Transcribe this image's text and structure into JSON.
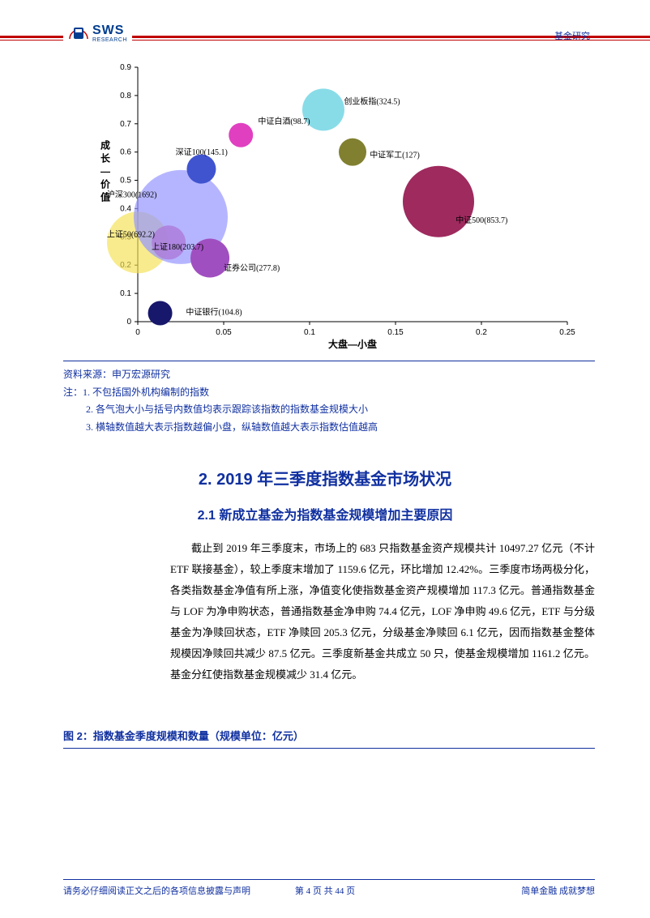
{
  "header": {
    "logo_main": "SWS",
    "logo_sub": "RESEARCH",
    "right_text": "基金研究"
  },
  "chart": {
    "type": "bubble",
    "xlabel": "大盘—小盘",
    "ylabel_top": "成",
    "ylabel_mid1": "长",
    "ylabel_mid2": "—",
    "ylabel_mid3": "价",
    "ylabel_bot": "值",
    "xlim": [
      0,
      0.25
    ],
    "ylim": [
      0,
      0.9
    ],
    "xticks": [
      0,
      0.05,
      0.1,
      0.15,
      0.2,
      0.25
    ],
    "yticks": [
      0,
      0.1,
      0.2,
      0.3,
      0.4,
      0.5,
      0.6,
      0.7,
      0.8,
      0.9
    ],
    "background": "#ffffff",
    "axis_color": "#000000",
    "bubbles": [
      {
        "label": "中证银行(104.8)",
        "x": 0.013,
        "y": 0.03,
        "r": 15,
        "color": "#17176b",
        "lx": 0.028,
        "ly": 0.025
      },
      {
        "label": "上证50(692.2)",
        "x": 0.0,
        "y": 0.28,
        "r": 38,
        "color": "#f5e050",
        "opacity": 0.65,
        "lx": -0.018,
        "ly": 0.3
      },
      {
        "label": "上证180(203.7)",
        "x": 0.018,
        "y": 0.28,
        "r": 21,
        "color": "#e03c80",
        "opacity": 0.8,
        "lx": 0.008,
        "ly": 0.255
      },
      {
        "label": "沪深300(1692)",
        "x": 0.025,
        "y": 0.37,
        "r": 58,
        "color": "#9696ff",
        "opacity": 0.7,
        "lx": -0.018,
        "ly": 0.44
      },
      {
        "label": "证券公司(277.8)",
        "x": 0.042,
        "y": 0.225,
        "r": 24,
        "color": "#a04fc0",
        "lx": 0.05,
        "ly": 0.18
      },
      {
        "label": "深证100(145.1)",
        "x": 0.037,
        "y": 0.54,
        "r": 18,
        "color": "#4054d0",
        "lx": 0.022,
        "ly": 0.59
      },
      {
        "label": "中证白酒(98.7)",
        "x": 0.06,
        "y": 0.66,
        "r": 15,
        "color": "#e040c0",
        "lx": 0.07,
        "ly": 0.7
      },
      {
        "label": "创业板指(324.5)",
        "x": 0.108,
        "y": 0.75,
        "r": 26,
        "color": "#60d0e0",
        "opacity": 0.75,
        "lx": 0.12,
        "ly": 0.77
      },
      {
        "label": "中证军工(127)",
        "x": 0.125,
        "y": 0.6,
        "r": 17,
        "color": "#808030",
        "lx": 0.135,
        "ly": 0.58
      },
      {
        "label": "中证500(853.7)",
        "x": 0.175,
        "y": 0.425,
        "r": 44,
        "color": "#9e2a5e",
        "lx": 0.185,
        "ly": 0.35
      }
    ]
  },
  "source": {
    "line0": "资料来源：申万宏源研究",
    "note_prefix": "注：",
    "note1": "1. 不包括国外机构编制的指数",
    "note2": "2. 各气泡大小与括号内数值均表示跟踪该指数的指数基金规模大小",
    "note3": "3. 横轴数值越大表示指数越偏小盘，纵轴数值越大表示指数估值越高"
  },
  "section": {
    "heading": "2. 2019 年三季度指数基金市场状况",
    "subheading": "2.1 新成立基金为指数基金规模增加主要原因"
  },
  "body": {
    "paragraph": "截止到 2019 年三季度末，市场上的 683 只指数基金资产规模共计 10497.27 亿元（不计 ETF 联接基金），较上季度末增加了 1159.6 亿元，环比增加 12.42%。三季度市场两极分化，各类指数基金净值有所上涨，净值变化使指数基金资产规模增加 117.3 亿元。普通指数基金与 LOF 为净申购状态，普通指数基金净申购 74.4 亿元，LOF 净申购 49.6 亿元，ETF 与分级基金为净赎回状态，ETF 净赎回 205.3 亿元，分级基金净赎回 6.1 亿元，因而指数基金整体规模因净赎回共减少 87.5 亿元。三季度新基金共成立 50 只，使基金规模增加 1161.2 亿元。基金分红使指数基金规模减少 31.4 亿元。"
  },
  "figure2": {
    "caption": "图 2：指数基金季度规模和数量（规模单位：亿元）"
  },
  "footer": {
    "left": "请务必仔细阅读正文之后的各项信息披露与声明",
    "center": "第 4 页 共 44 页",
    "right": "简单金融 成就梦想"
  }
}
